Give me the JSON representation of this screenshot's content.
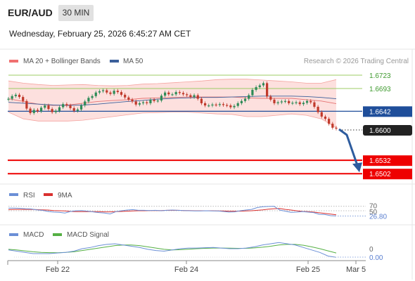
{
  "header": {
    "symbol": "EUR/AUD",
    "timeframe": "30 MIN",
    "datetime": "Wednesday, February 25, 2026 6:45:27 AM CET"
  },
  "colors": {
    "candle_up": "#2e8b57",
    "candle_down": "#c0392b",
    "bollinger_fill": "#fde0de",
    "bollinger_line": "#f4a4a0",
    "ma20": "#e57373",
    "ma50": "#3b5f9a",
    "resistance": "#9ccc65",
    "support": "#ee0000",
    "pivot": "#1f4e9a",
    "current_price_bg": "#222222",
    "rsi_line": "#6b8fd6",
    "rsi_9ma": "#d9302f",
    "macd_line": "#6b8fd6",
    "macd_signal": "#55b044",
    "arrow": "#2e5c9e"
  },
  "chart_data": [
    {
      "type": "line",
      "panel": "price",
      "symbol": "EUR/AUD",
      "legend": [
        "MA 20 + Bollinger Bands",
        "MA 50"
      ],
      "legend_placement": "top-left",
      "watermark": "Research © 2026 Trading Central",
      "x_ticks": [
        "Feb 22",
        "Feb 24",
        "Feb 25",
        "Mar 5"
      ],
      "ylim": [
        1.6485,
        1.6745
      ],
      "price_start": 1.6668,
      "closes": [
        1.667,
        1.6676,
        1.6679,
        1.6674,
        1.6665,
        1.6648,
        1.6638,
        1.6645,
        1.6642,
        1.665,
        1.6655,
        1.6647,
        1.664,
        1.6643,
        1.6651,
        1.6658,
        1.6655,
        1.6649,
        1.6643,
        1.6646,
        1.6655,
        1.6664,
        1.6672,
        1.6676,
        1.6684,
        1.6687,
        1.6689,
        1.6684,
        1.6681,
        1.6688,
        1.6685,
        1.6679,
        1.6673,
        1.6668,
        1.6664,
        1.6657,
        1.666,
        1.6662,
        1.666,
        1.6668,
        1.6665,
        1.6666,
        1.6677,
        1.6684,
        1.668,
        1.668,
        1.6685,
        1.6683,
        1.668,
        1.6678,
        1.6674,
        1.6678,
        1.667,
        1.666,
        1.6655,
        1.6655,
        1.6657,
        1.6656,
        1.6658,
        1.6656,
        1.6655,
        1.6651,
        1.6654,
        1.666,
        1.6665,
        1.667,
        1.6678,
        1.669,
        1.6696,
        1.67,
        1.6705,
        1.6675,
        1.6668,
        1.666,
        1.6662,
        1.6664,
        1.6665,
        1.666,
        1.6661,
        1.6662,
        1.6658,
        1.6661,
        1.6665,
        1.6662,
        1.6652,
        1.664,
        1.663,
        1.6625,
        1.6614,
        1.6605,
        1.6603
      ],
      "bollinger": {
        "upper": [
          1.671,
          1.6705,
          1.6702,
          1.67,
          1.6701,
          1.6702,
          1.67,
          1.6699,
          1.67,
          1.6703,
          1.6704,
          1.6706,
          1.6708,
          1.671,
          1.6713,
          1.6714,
          1.6714,
          1.6712,
          1.671,
          1.6708,
          1.6705,
          1.6705,
          1.6713
        ],
        "lower": [
          1.664,
          1.6625,
          1.662,
          1.662,
          1.662,
          1.6622,
          1.6626,
          1.663,
          1.6634,
          1.6638,
          1.6639,
          1.664,
          1.664,
          1.6638,
          1.6636,
          1.6635,
          1.663,
          1.663,
          1.6633,
          1.6636,
          1.6633,
          1.6625,
          1.6605
        ]
      },
      "ma20": [
        1.667,
        1.6664,
        1.6658,
        1.6655,
        1.6656,
        1.666,
        1.6664,
        1.6666,
        1.6668,
        1.6671,
        1.6672,
        1.6673,
        1.6674,
        1.6674,
        1.6674,
        1.6674,
        1.6672,
        1.6671,
        1.6671,
        1.6671,
        1.6668,
        1.6665,
        1.6659
      ],
      "ma50": [
        1.6662,
        1.666,
        1.6658,
        1.6656,
        1.6655,
        1.6656,
        1.6658,
        1.6661,
        1.6664,
        1.6666,
        1.6669,
        1.6671,
        1.6672,
        1.6673,
        1.6673,
        1.6674,
        1.6675,
        1.6676,
        1.6676,
        1.6676,
        1.6675,
        1.6673,
        1.667
      ],
      "resistance_levels": [
        1.6723,
        1.6693
      ],
      "pivot": 1.6642,
      "current_price": 1.66,
      "support_levels": [
        1.6532,
        1.6502
      ]
    },
    {
      "type": "line",
      "panel": "RSI",
      "legend": [
        "RSI",
        "9MA"
      ],
      "levels": [
        70,
        50
      ],
      "current_value": 26.8,
      "ylim": [
        0,
        100
      ],
      "rsi": [
        62,
        62,
        61,
        59,
        58,
        54,
        52,
        47,
        44,
        43,
        40,
        47,
        50,
        51,
        48,
        45,
        42,
        40,
        36,
        46,
        50,
        53,
        55,
        52,
        52,
        51,
        52,
        50,
        52,
        53,
        52,
        51,
        50,
        49,
        49,
        50,
        49,
        49,
        47,
        44,
        45,
        50,
        53,
        56,
        64,
        68,
        69,
        70,
        53,
        48,
        43,
        44,
        46,
        44,
        42,
        34,
        33,
        28,
        27
      ],
      "ma9": [
        55,
        56,
        56,
        56,
        56,
        55,
        54,
        53,
        51,
        50,
        49,
        47,
        46,
        46,
        46,
        46,
        46,
        45,
        45,
        46,
        47,
        48,
        49,
        50,
        50,
        51,
        51,
        51,
        52,
        52,
        52,
        51,
        51,
        50,
        50,
        50,
        50,
        49,
        49,
        48,
        48,
        48,
        49,
        50,
        52,
        54,
        57,
        59,
        60,
        56,
        53,
        50,
        47,
        46,
        44,
        41,
        38,
        35,
        32
      ]
    },
    {
      "type": "line",
      "panel": "MACD",
      "legend": [
        "MACD",
        "MACD Signal"
      ],
      "zero_label": "0",
      "current_value": -0.0,
      "ylim": [
        -8,
        8
      ],
      "macd": [
        -1,
        -2,
        -3,
        -4,
        -4,
        -4,
        -3.5,
        -3,
        -2,
        0,
        1,
        2.5,
        3.5,
        4,
        3,
        2,
        1,
        -0.5,
        -1.5,
        -2,
        -1,
        0,
        0.5,
        0.5,
        0.8,
        1,
        0.5,
        0,
        0,
        0.5,
        1.5,
        3,
        4,
        5,
        4,
        3,
        1,
        -1,
        -3,
        -6,
        -7
      ],
      "signal": [
        -0.5,
        -1,
        -1.8,
        -2.5,
        -3,
        -3.2,
        -3.3,
        -3,
        -2.5,
        -1.5,
        -0.5,
        0.5,
        1.5,
        2.5,
        3,
        3,
        2.5,
        1.5,
        0.5,
        -0.5,
        -1,
        -0.8,
        -0.4,
        0,
        0.3,
        0.5,
        0.5,
        0.4,
        0.3,
        0.3,
        0.6,
        1.2,
        2,
        3,
        3.5,
        3.5,
        2.8,
        1.5,
        0,
        -1.8,
        -3.5
      ]
    }
  ]
}
